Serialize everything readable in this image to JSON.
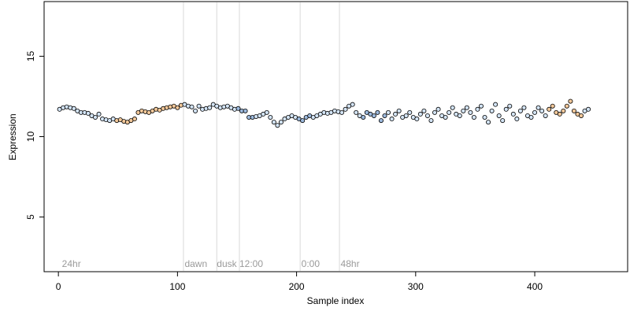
{
  "chart_data": {
    "type": "scatter",
    "title": "",
    "xlabel": "Sample index",
    "ylabel": "Expression",
    "xlim": [
      -12,
      478
    ],
    "ylim": [
      1.6,
      18.4
    ],
    "x_ticks": [
      0,
      100,
      200,
      300,
      400
    ],
    "y_ticks": [
      5,
      10,
      15
    ],
    "grid": false,
    "legend": "none",
    "colors": {
      "point_default": "#d3e4f5",
      "point_warm": "#f2c89a",
      "point_cool": "#9cb9dd",
      "point_edge": "#000000",
      "vline": "#d9d9d9",
      "annotation": "#9a9a9a"
    },
    "annotations": [
      {
        "x": 3,
        "label": "24hr"
      },
      {
        "x": 106,
        "label": "dawn"
      },
      {
        "x": 133,
        "label": "dusk"
      },
      {
        "x": 152,
        "label": "12:00"
      },
      {
        "x": 204,
        "label": "0:00"
      },
      {
        "x": 237,
        "label": "48hr"
      }
    ],
    "vlines": [
      105,
      133,
      152,
      203,
      236
    ],
    "warm_ranges": [
      [
        48,
        103
      ],
      [
        412,
        440
      ]
    ],
    "cool_ranges": [
      [
        150,
        165
      ],
      [
        200,
        212
      ],
      [
        255,
        275
      ]
    ],
    "series": [
      {
        "values": [
          11.7,
          11.8,
          11.85,
          11.8,
          11.75,
          11.6,
          11.5,
          11.5,
          11.45,
          11.3,
          11.2,
          11.4,
          11.1,
          11.05,
          11.0,
          11.1,
          11.0,
          11.05,
          10.95,
          10.9,
          11.0,
          11.1,
          11.5,
          11.6,
          11.55,
          11.5,
          11.6,
          11.7,
          11.65,
          11.75,
          11.8,
          11.85,
          11.9,
          11.8,
          11.95,
          12.0,
          11.9,
          11.85,
          11.6,
          11.9,
          11.7,
          11.75,
          11.8,
          12.0,
          11.9,
          11.8,
          11.85,
          11.9,
          11.8,
          11.7,
          11.75,
          11.6,
          11.6,
          11.2,
          11.2,
          11.25,
          11.3,
          11.4,
          11.5,
          11.2,
          10.9,
          10.7,
          10.9,
          11.1,
          11.2,
          11.3,
          11.2,
          11.1,
          11.0,
          11.2,
          11.3,
          11.2,
          11.3,
          11.4,
          11.5,
          11.45,
          11.5,
          11.6,
          11.55,
          11.5,
          11.7,
          11.9,
          12.0,
          11.5,
          11.3,
          11.2,
          11.5,
          11.4,
          11.3,
          11.5,
          11.0,
          11.3,
          11.5,
          11.1,
          11.4,
          11.6,
          11.2,
          11.3,
          11.5,
          11.2,
          11.1,
          11.4,
          11.6,
          11.3,
          11.0,
          11.5,
          11.7,
          11.3,
          11.2,
          11.5,
          11.8,
          11.4,
          11.3,
          11.6,
          11.8,
          11.5,
          11.2,
          11.7,
          11.9,
          11.2,
          10.9,
          11.6,
          12.0,
          11.3,
          11.0,
          11.7,
          11.9,
          11.4,
          11.1,
          11.6,
          11.8,
          11.3,
          11.2,
          11.5,
          11.8,
          11.6,
          11.3,
          11.7,
          11.9,
          11.5,
          11.4,
          11.6,
          11.9,
          12.2,
          11.6,
          11.4,
          11.3,
          11.6,
          11.7
        ]
      }
    ]
  }
}
